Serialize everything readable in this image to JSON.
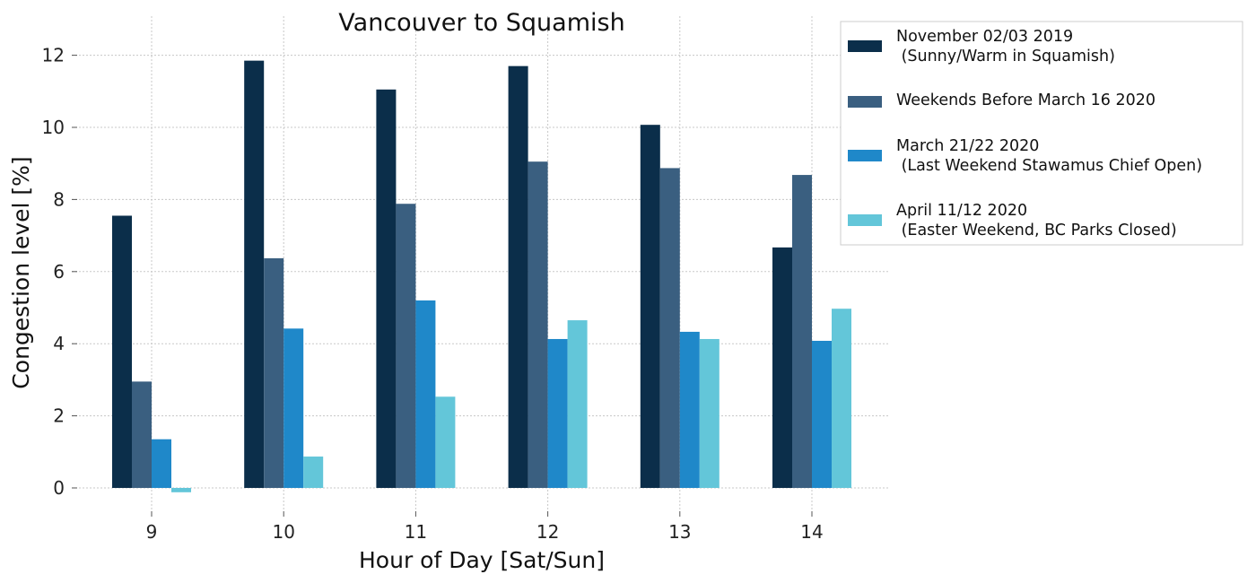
{
  "chart_data": {
    "type": "bar",
    "title": "Vancouver to Squamish",
    "xlabel": "Hour of Day [Sat/Sun]",
    "ylabel": "Congestion level [%]",
    "categories": [
      "9",
      "10",
      "11",
      "12",
      "13",
      "14"
    ],
    "ylim": [
      -0.6,
      12.4
    ],
    "yticks": [
      "0",
      "2",
      "4",
      "6",
      "8",
      "10",
      "12"
    ],
    "grid": true,
    "legend_position": "top-right outside",
    "series": [
      {
        "name": "November 02/03 2019\n (Sunny/Warm in Squamish)",
        "color": "#0b2e4a",
        "values": [
          7.55,
          11.85,
          11.05,
          11.7,
          10.07,
          6.67
        ]
      },
      {
        "name": "Weekends Before March 16 2020",
        "color": "#3a5f80",
        "values": [
          2.95,
          6.37,
          7.88,
          9.05,
          8.87,
          8.68
        ]
      },
      {
        "name": "March 21/22 2020\n (Last Weekend Stawamus Chief Open)",
        "color": "#1f88c9",
        "values": [
          1.35,
          4.42,
          5.2,
          4.13,
          4.33,
          4.08
        ]
      },
      {
        "name": "April 11/12 2020\n (Easter Weekend, BC Parks Closed)",
        "color": "#63c6d9",
        "values": [
          -0.12,
          0.87,
          2.53,
          4.65,
          4.13,
          4.97
        ]
      }
    ]
  }
}
